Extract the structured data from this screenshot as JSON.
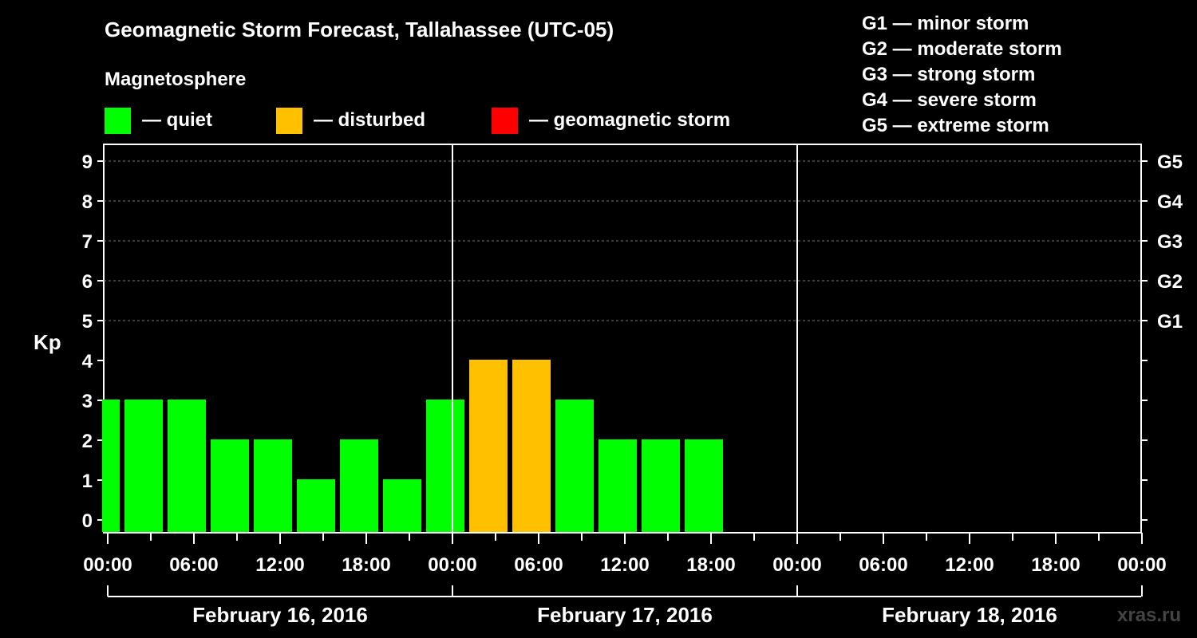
{
  "chart_data": {
    "type": "bar",
    "title": "Geomagnetic Storm Forecast, Tallahassee (UTC-05)",
    "subtitle": "Magnetosphere",
    "ylabel": "Kp",
    "ylim": [
      0,
      9
    ],
    "yticks": [
      "0",
      "1",
      "2",
      "3",
      "4",
      "5",
      "6",
      "7",
      "8",
      "9"
    ],
    "right_axis": [
      {
        "label": "G1",
        "kp": 5
      },
      {
        "label": "G2",
        "kp": 6
      },
      {
        "label": "G3",
        "kp": 7
      },
      {
        "label": "G4",
        "kp": 8
      },
      {
        "label": "G5",
        "kp": 9
      }
    ],
    "xticks": [
      "00:00",
      "06:00",
      "12:00",
      "18:00",
      "00:00",
      "06:00",
      "12:00",
      "18:00",
      "00:00",
      "06:00",
      "12:00",
      "18:00",
      "00:00"
    ],
    "dates": [
      "February 16, 2016",
      "February 17, 2016",
      "February 18, 2016"
    ],
    "legend": [
      {
        "label": "— quiet",
        "color": "#00ff00"
      },
      {
        "label": "— disturbed",
        "color": "#ffc000"
      },
      {
        "label": "— geomagnetic storm",
        "color": "#ff0000"
      }
    ],
    "storm_levels": [
      "G1 — minor storm",
      "G2 — moderate storm",
      "G3 — strong storm",
      "G4 — severe storm",
      "G5 — extreme storm"
    ],
    "x_range_hours": [
      -0.4,
      72
    ],
    "bars": [
      {
        "start_hour": -0.4,
        "end_hour": 1,
        "value": 3,
        "status": "quiet"
      },
      {
        "start_hour": 1,
        "end_hour": 4,
        "value": 3,
        "status": "quiet"
      },
      {
        "start_hour": 4,
        "end_hour": 7,
        "value": 3,
        "status": "quiet"
      },
      {
        "start_hour": 7,
        "end_hour": 10,
        "value": 2,
        "status": "quiet"
      },
      {
        "start_hour": 10,
        "end_hour": 13,
        "value": 2,
        "status": "quiet"
      },
      {
        "start_hour": 13,
        "end_hour": 16,
        "value": 1,
        "status": "quiet"
      },
      {
        "start_hour": 16,
        "end_hour": 19,
        "value": 2,
        "status": "quiet"
      },
      {
        "start_hour": 19,
        "end_hour": 22,
        "value": 1,
        "status": "quiet"
      },
      {
        "start_hour": 22,
        "end_hour": 25,
        "value": 3,
        "status": "quiet"
      },
      {
        "start_hour": 25,
        "end_hour": 28,
        "value": 4,
        "status": "disturbed"
      },
      {
        "start_hour": 28,
        "end_hour": 31,
        "value": 4,
        "status": "disturbed"
      },
      {
        "start_hour": 31,
        "end_hour": 34,
        "value": 3,
        "status": "quiet"
      },
      {
        "start_hour": 34,
        "end_hour": 37,
        "value": 2,
        "status": "quiet"
      },
      {
        "start_hour": 37,
        "end_hour": 40,
        "value": 2,
        "status": "quiet"
      },
      {
        "start_hour": 40,
        "end_hour": 43,
        "value": 2,
        "status": "quiet"
      }
    ],
    "status_colors": {
      "quiet": "#00ff00",
      "disturbed": "#ffc000",
      "storm": "#ff0000"
    }
  },
  "watermark": "xras.ru"
}
